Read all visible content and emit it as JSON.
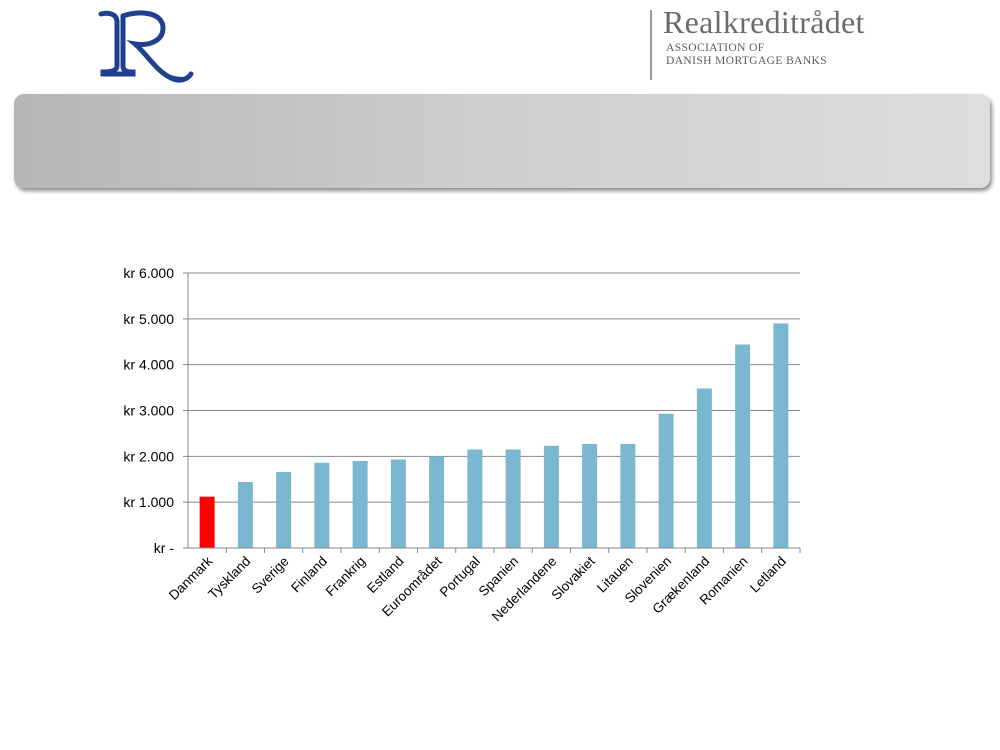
{
  "header": {
    "logo_icon": "rr-monogram-logo",
    "org_name": "Realkreditrådet",
    "org_subtitle_line1": "ASSOCIATION OF",
    "org_subtitle_line2": "DANISH MORTGAGE BANKS",
    "brand_color": "#1f3f8f"
  },
  "title_bar": {
    "text": ""
  },
  "chart_data": {
    "type": "bar",
    "categories": [
      "Danmark",
      "Tyskland",
      "Sverige",
      "Finland",
      "Frankrig",
      "Estland",
      "Euroområdet",
      "Portugal",
      "Spanien",
      "Nederlandene",
      "Slovakiet",
      "Litauen",
      "Slovenien",
      "Grækenland",
      "Romanien",
      "Letland"
    ],
    "values": [
      1120,
      1440,
      1660,
      1860,
      1900,
      1930,
      2000,
      2150,
      2150,
      2230,
      2270,
      2270,
      2930,
      3480,
      4440,
      4900
    ],
    "highlight_index": 0,
    "colors": {
      "default": "#7bb7d0",
      "highlight": "#ff0000",
      "grid": "#888888",
      "axis": "#888888"
    },
    "ylim": [
      0,
      6000
    ],
    "yticks": [
      {
        "value": 0,
        "label": "kr -"
      },
      {
        "value": 1000,
        "label": "kr 1.000"
      },
      {
        "value": 2000,
        "label": "kr 2.000"
      },
      {
        "value": 3000,
        "label": "kr 3.000"
      },
      {
        "value": 4000,
        "label": "kr 4.000"
      },
      {
        "value": 5000,
        "label": "kr 5.000"
      },
      {
        "value": 6000,
        "label": "kr 6.000"
      }
    ],
    "grid": true,
    "legend": false,
    "title": "",
    "xlabel": "",
    "ylabel": ""
  }
}
